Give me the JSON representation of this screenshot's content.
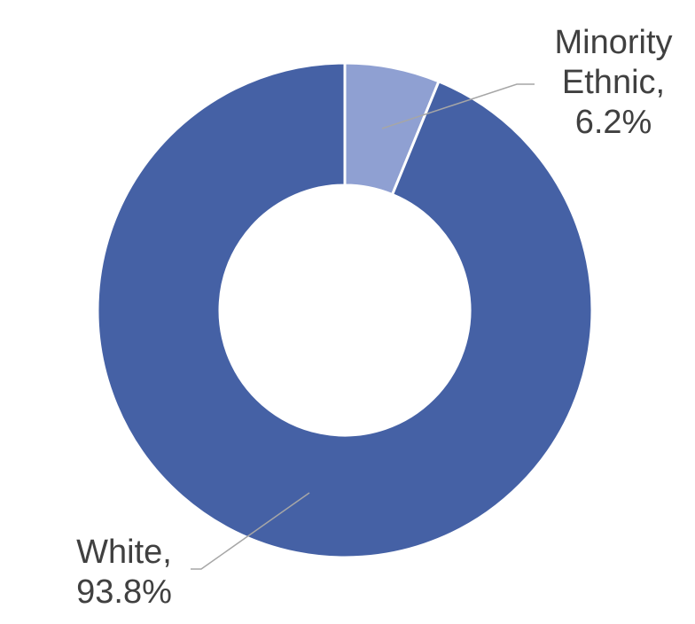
{
  "chart_data": {
    "type": "pie",
    "variant": "donut",
    "title": "",
    "labels": [
      "Minority Ethnic",
      "White"
    ],
    "values": [
      6.2,
      93.8
    ],
    "unit": "%",
    "colors": [
      "#8FA0D2",
      "#4561A5"
    ],
    "start_angle_deg": 0,
    "direction": "clockwise",
    "data_labels": [
      {
        "lines": [
          "Minority",
          "Ethnic,",
          "6.2%"
        ]
      },
      {
        "lines": [
          "White,",
          "93.8%"
        ]
      }
    ],
    "legend": "none",
    "leader_line_color": "#A6A6A6",
    "label_color": "#404040",
    "separator_color": "#FFFFFF"
  }
}
